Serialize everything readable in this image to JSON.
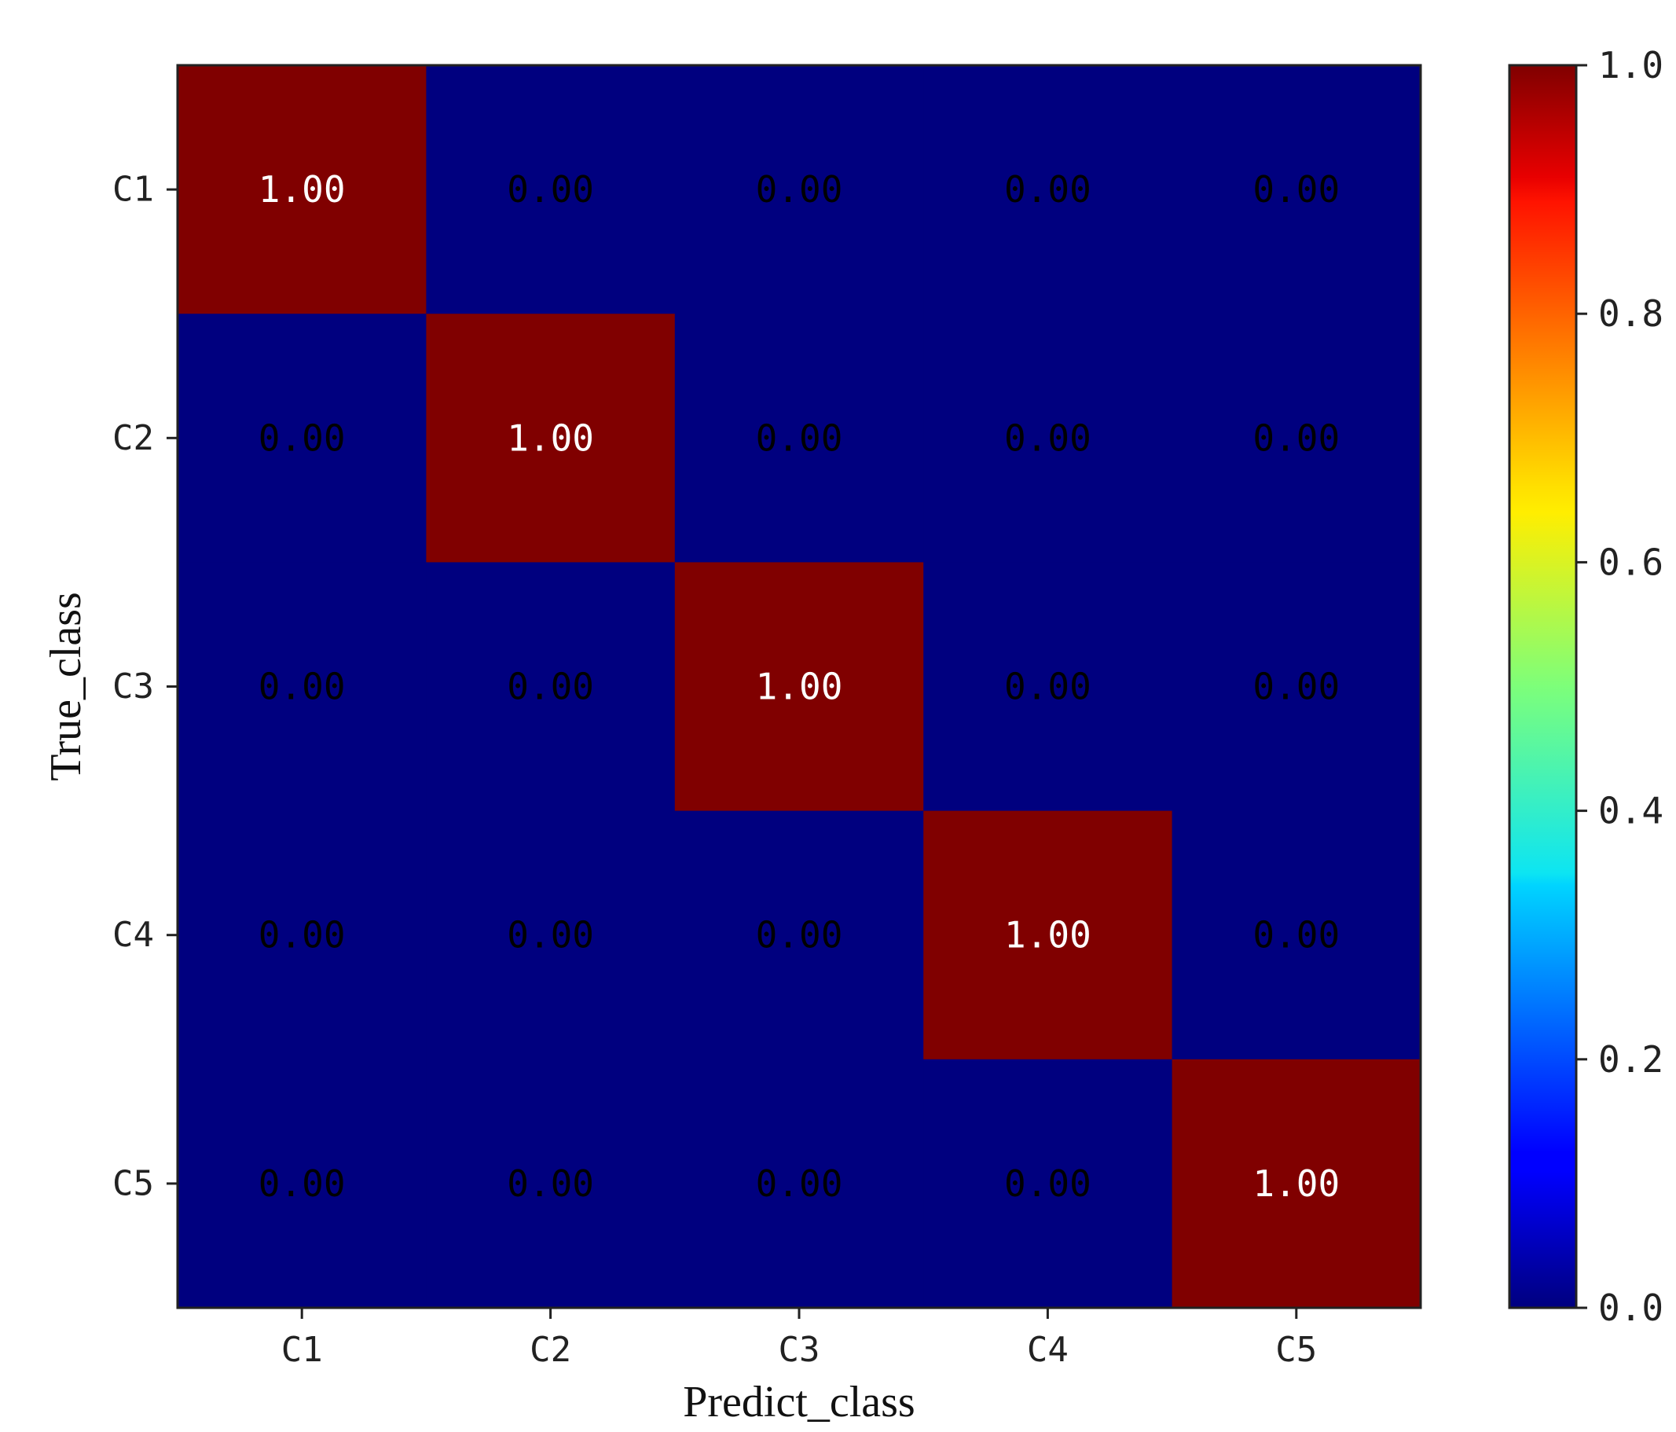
{
  "chart_data": {
    "type": "heatmap",
    "xlabel": "Predict_class",
    "ylabel": "True_class",
    "x_categories": [
      "C1",
      "C2",
      "C3",
      "C4",
      "C5"
    ],
    "y_categories": [
      "C1",
      "C2",
      "C3",
      "C4",
      "C5"
    ],
    "values": [
      [
        1.0,
        0.0,
        0.0,
        0.0,
        0.0
      ],
      [
        0.0,
        1.0,
        0.0,
        0.0,
        0.0
      ],
      [
        0.0,
        0.0,
        1.0,
        0.0,
        0.0
      ],
      [
        0.0,
        0.0,
        0.0,
        1.0,
        0.0
      ],
      [
        0.0,
        0.0,
        0.0,
        0.0,
        1.0
      ]
    ],
    "cell_labels": [
      [
        "1.00",
        "0.00",
        "0.00",
        "0.00",
        "0.00"
      ],
      [
        "0.00",
        "1.00",
        "0.00",
        "0.00",
        "0.00"
      ],
      [
        "0.00",
        "0.00",
        "1.00",
        "0.00",
        "0.00"
      ],
      [
        "0.00",
        "0.00",
        "0.00",
        "1.00",
        "0.00"
      ],
      [
        "0.00",
        "0.00",
        "0.00",
        "0.00",
        "1.00"
      ]
    ],
    "colormap": "jet",
    "colorbar": {
      "range": [
        0.0,
        1.0
      ],
      "ticks": [
        0.0,
        0.2,
        0.4,
        0.6,
        0.8,
        1.0
      ],
      "tick_labels": [
        "0.0",
        "0.2",
        "0.4",
        "0.6",
        "0.8",
        "1.0"
      ],
      "placement": "right"
    },
    "colors": {
      "high": "#800000",
      "low": "#00007f",
      "label_on_high": "#ffffff",
      "label_on_low": "#000000"
    },
    "grid": false
  }
}
